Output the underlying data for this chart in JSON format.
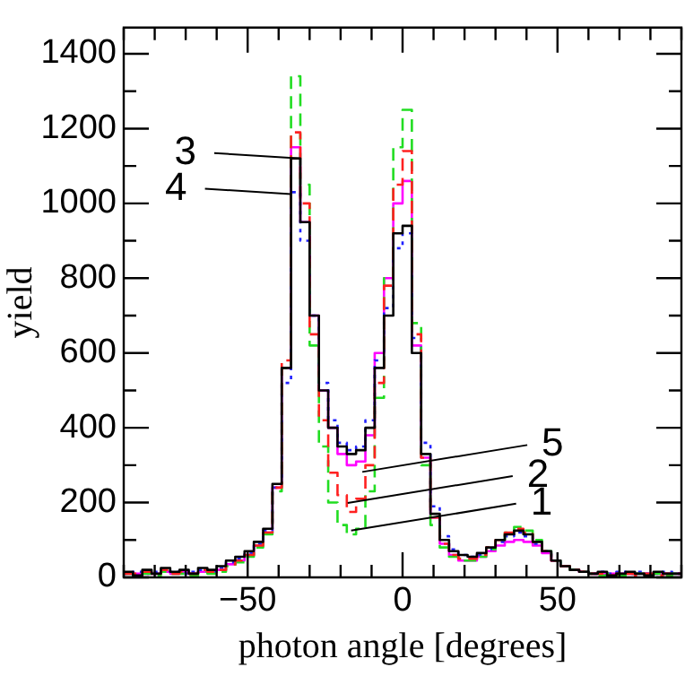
{
  "chart_data": {
    "type": "histogram",
    "xlabel": "photon angle [degrees]",
    "ylabel": "yield",
    "bins": [
      -90,
      -87,
      -84,
      -81,
      -78,
      -75,
      -72,
      -69,
      -66,
      -63,
      -60,
      -57,
      -54,
      -51,
      -48,
      -45,
      -42,
      -39,
      -36,
      -33,
      -30,
      -27,
      -24,
      -21,
      -18,
      -15,
      -12,
      -9,
      -6,
      -3,
      0,
      3,
      6,
      9,
      12,
      15,
      18,
      21,
      24,
      27,
      30,
      33,
      36,
      39,
      42,
      45,
      48,
      51,
      54,
      57,
      60,
      63,
      66,
      69,
      72,
      75,
      78,
      81,
      84,
      87,
      90
    ],
    "series": [
      {
        "color": "#000000",
        "line_style": "solid",
        "values": [
          15,
          5,
          20,
          10,
          25,
          15,
          20,
          10,
          25,
          20,
          30,
          45,
          55,
          70,
          95,
          130,
          250,
          560,
          1120,
          950,
          700,
          500,
          400,
          350,
          330,
          340,
          400,
          560,
          700,
          920,
          940,
          600,
          330,
          170,
          100,
          70,
          60,
          55,
          65,
          80,
          100,
          115,
          125,
          115,
          95,
          70,
          45,
          30,
          20,
          15,
          10,
          15,
          5,
          10,
          15,
          10,
          5,
          15,
          10,
          10
        ]
      },
      {
        "color": "#ff2020",
        "line_style": "dashed",
        "values": [
          10,
          10,
          15,
          10,
          20,
          10,
          15,
          10,
          20,
          15,
          20,
          35,
          45,
          60,
          85,
          120,
          240,
          580,
          1190,
          1000,
          650,
          420,
          280,
          220,
          175,
          210,
          300,
          520,
          780,
          1050,
          1140,
          650,
          320,
          160,
          90,
          60,
          50,
          50,
          60,
          80,
          100,
          120,
          130,
          120,
          95,
          70,
          45,
          30,
          20,
          15,
          10,
          10,
          5,
          10,
          10,
          5,
          10,
          5,
          10,
          10
        ]
      },
      {
        "color": "#22dd22",
        "line_style": "dashed",
        "values": [
          10,
          5,
          10,
          5,
          15,
          10,
          10,
          5,
          15,
          10,
          15,
          30,
          40,
          55,
          80,
          115,
          230,
          560,
          1340,
          1050,
          620,
          350,
          200,
          140,
          115,
          130,
          230,
          480,
          800,
          1150,
          1250,
          680,
          300,
          140,
          80,
          55,
          45,
          45,
          55,
          75,
          100,
          120,
          135,
          125,
          100,
          70,
          45,
          30,
          20,
          15,
          10,
          5,
          10,
          5,
          10,
          10,
          5,
          10,
          5,
          10
        ]
      },
      {
        "color": "#2020ff",
        "line_style": "dotted",
        "values": [
          10,
          15,
          10,
          15,
          20,
          15,
          10,
          15,
          20,
          15,
          25,
          40,
          50,
          65,
          90,
          125,
          240,
          520,
          1030,
          900,
          700,
          520,
          420,
          360,
          340,
          350,
          420,
          580,
          720,
          880,
          920,
          640,
          360,
          190,
          110,
          75,
          60,
          55,
          60,
          75,
          95,
          110,
          120,
          110,
          90,
          70,
          45,
          30,
          20,
          15,
          10,
          15,
          10,
          15,
          10,
          15,
          10,
          10,
          15,
          10
        ]
      },
      {
        "color": "#ff00ff",
        "line_style": "solid",
        "values": [
          10,
          10,
          10,
          10,
          15,
          10,
          15,
          10,
          15,
          15,
          20,
          35,
          45,
          60,
          85,
          120,
          240,
          560,
          1150,
          950,
          700,
          500,
          400,
          330,
          300,
          310,
          380,
          600,
          800,
          1000,
          1060,
          620,
          320,
          160,
          90,
          60,
          45,
          45,
          55,
          70,
          85,
          95,
          100,
          95,
          85,
          65,
          45,
          30,
          20,
          15,
          10,
          10,
          10,
          10,
          10,
          10,
          10,
          10,
          10,
          10
        ]
      }
    ],
    "annotations": [
      {
        "text": "1",
        "x": -16.6,
        "y": 125
      },
      {
        "text": "2",
        "x": -17.7,
        "y": 199
      },
      {
        "text": "3",
        "x": -33,
        "y": 1120
      },
      {
        "text": "4",
        "x": -36,
        "y": 1025
      },
      {
        "text": "5",
        "x": -13,
        "y": 282
      }
    ],
    "xlim": [
      -90,
      90
    ],
    "ylim": [
      0,
      1470
    ],
    "xticks": [
      {
        "value": -90,
        "label": null
      },
      {
        "value": -80,
        "label": null
      },
      {
        "value": -70,
        "label": null
      },
      {
        "value": -60,
        "label": null
      },
      {
        "value": -50,
        "label": "−50"
      },
      {
        "value": -40,
        "label": null
      },
      {
        "value": -30,
        "label": null
      },
      {
        "value": -20,
        "label": null
      },
      {
        "value": -10,
        "label": null
      },
      0,
      {
        "value": 10,
        "label": null
      },
      {
        "value": 20,
        "label": null
      },
      {
        "value": 30,
        "label": null
      },
      {
        "value": 40,
        "label": null
      },
      50,
      {
        "value": 60,
        "label": null
      },
      {
        "value": 70,
        "label": null
      },
      {
        "value": 80,
        "label": null
      },
      {
        "value": 90,
        "label": null
      }
    ],
    "yticks": [
      0,
      {
        "value": 100,
        "label": null
      },
      200,
      {
        "value": 300,
        "label": null
      },
      400,
      {
        "value": 500,
        "label": null
      },
      600,
      {
        "value": 700,
        "label": null
      },
      800,
      {
        "value": 900,
        "label": null
      },
      1000,
      {
        "value": 1100,
        "label": null
      },
      1200,
      {
        "value": 1300,
        "label": null
      },
      1400
    ],
    "grid": false,
    "legend": false
  }
}
